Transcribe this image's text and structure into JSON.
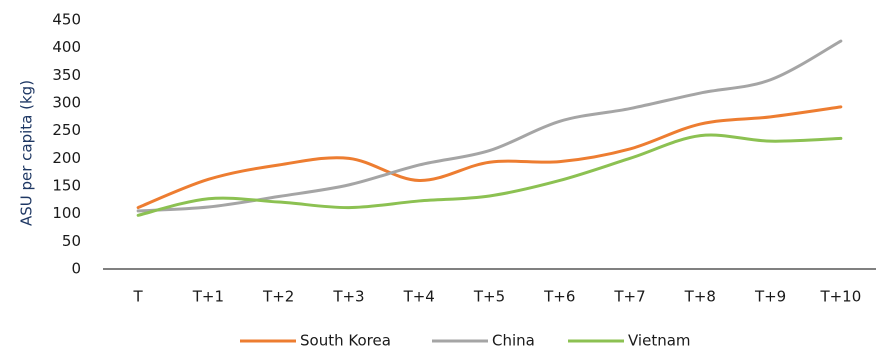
{
  "chart_data": {
    "type": "line",
    "title": "",
    "xlabel": "",
    "ylabel": "ASU per capita (kg)",
    "categories": [
      "T",
      "T+1",
      "T+2",
      "T+3",
      "T+4",
      "T+5",
      "T+6",
      "T+7",
      "T+8",
      "T+9",
      "T+10"
    ],
    "ylim": [
      0,
      450
    ],
    "yticks": [
      0,
      50,
      100,
      150,
      200,
      250,
      300,
      350,
      400,
      450
    ],
    "grid": false,
    "smooth": true,
    "legend": "bottom",
    "series": [
      {
        "name": "South Korea",
        "color": "#ed7d31",
        "values": [
          111,
          162,
          188,
          200,
          160,
          193,
          194,
          217,
          262,
          275,
          293
        ]
      },
      {
        "name": "China",
        "color": "#a5a5a5",
        "values": [
          105,
          112,
          131,
          152,
          188,
          214,
          267,
          290,
          318,
          342,
          412
        ]
      },
      {
        "name": "Vietnam",
        "color": "#8cc152",
        "values": [
          97,
          127,
          121,
          111,
          123,
          132,
          160,
          200,
          241,
          231,
          236
        ]
      }
    ]
  }
}
